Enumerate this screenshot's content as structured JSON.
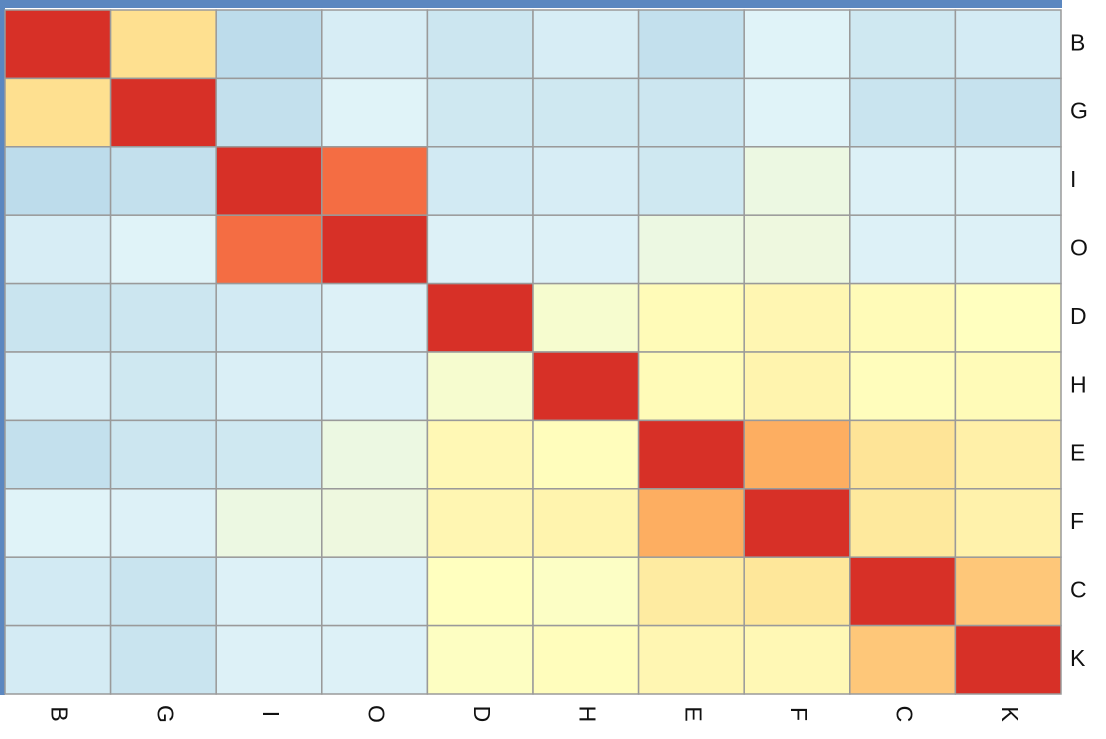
{
  "chart_data": {
    "type": "heatmap",
    "x_labels": [
      "B",
      "G",
      "I",
      "O",
      "D",
      "H",
      "E",
      "F",
      "C",
      "K"
    ],
    "y_labels": [
      "B",
      "G",
      "I",
      "O",
      "D",
      "H",
      "E",
      "F",
      "C",
      "K"
    ],
    "values": [
      [
        1,
        0.52,
        0.08,
        0.17,
        0.13,
        0.17,
        0.1,
        0.2,
        0.14,
        0.16
      ],
      [
        0.52,
        1,
        0.1,
        0.2,
        0.14,
        0.14,
        0.13,
        0.2,
        0.12,
        0.11
      ],
      [
        0.08,
        0.1,
        1,
        0.85,
        0.15,
        0.17,
        0.14,
        0.27,
        0.19,
        0.19
      ],
      [
        0.17,
        0.2,
        0.85,
        1,
        0.19,
        0.19,
        0.27,
        0.28,
        0.19,
        0.19
      ],
      [
        0.12,
        0.13,
        0.15,
        0.19,
        1,
        0.33,
        0.4,
        0.42,
        0.4,
        0.38
      ],
      [
        0.17,
        0.14,
        0.18,
        0.19,
        0.33,
        1,
        0.4,
        0.43,
        0.39,
        0.4
      ],
      [
        0.1,
        0.13,
        0.14,
        0.27,
        0.41,
        0.39,
        1,
        0.68,
        0.5,
        0.45
      ],
      [
        0.2,
        0.19,
        0.27,
        0.28,
        0.42,
        0.43,
        0.68,
        1,
        0.48,
        0.44
      ],
      [
        0.15,
        0.12,
        0.19,
        0.19,
        0.38,
        0.36,
        0.47,
        0.49,
        1,
        0.6
      ],
      [
        0.16,
        0.12,
        0.19,
        0.19,
        0.37,
        0.39,
        0.42,
        0.41,
        0.6,
        1
      ]
    ],
    "color_stops": {
      "values": [
        0,
        0.2,
        0.38,
        0.52,
        0.68,
        0.85,
        1
      ],
      "colors": [
        "#a6cde2",
        "#e0f3f8",
        "#ffffbf",
        "#fee090",
        "#fdae61",
        "#f46d43",
        "#d73027"
      ]
    }
  }
}
